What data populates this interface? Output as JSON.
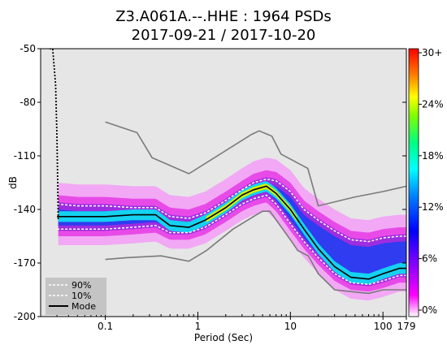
{
  "chart_data": {
    "type": "heatmap",
    "title_line1": "Z3.A061A.--.HHE : 1964 PSDs",
    "title_line2": "2017-09-21 / 2017-10-20",
    "xlabel": "Period (Sec)",
    "ylabel": "dB",
    "x_scale": "log",
    "xlim": [
      0.02,
      179
    ],
    "ylim": [
      -200,
      -50
    ],
    "x_ticks": [
      {
        "value": 0.1,
        "label": "0.1"
      },
      {
        "value": 1,
        "label": "1"
      },
      {
        "value": 10,
        "label": "10"
      },
      {
        "value": 100,
        "label": "100"
      },
      {
        "value": 179,
        "label": "179"
      }
    ],
    "y_ticks": [
      {
        "value": -50,
        "label": "-50"
      },
      {
        "value": -80,
        "label": "-80"
      },
      {
        "value": -110,
        "label": "-110"
      },
      {
        "value": -140,
        "label": "-140"
      },
      {
        "value": -170,
        "label": "-170"
      },
      {
        "value": -200,
        "label": "-200"
      }
    ],
    "colorbar": {
      "labels": [
        "30+",
        "24%",
        "18%",
        "12%",
        "6%",
        "0%"
      ],
      "range": [
        0,
        30
      ],
      "colormap": [
        "#ffffff",
        "#ff00ff",
        "#8000ff",
        "#0000ff",
        "#0080ff",
        "#00ffff",
        "#00ff80",
        "#80ff00",
        "#ffff00",
        "#ff8000",
        "#ff0000"
      ]
    },
    "legend": {
      "placement": "bottom-left",
      "entries": [
        {
          "label": "90%",
          "style": "dashed",
          "color": "#ffffff"
        },
        {
          "label": "10%",
          "style": "dashed",
          "color": "#ffffff"
        },
        {
          "label": "Mode",
          "style": "solid",
          "color": "#000000"
        }
      ]
    },
    "series": [
      {
        "name": "Mode",
        "points": [
          [
            0.03,
            -144
          ],
          [
            0.05,
            -144
          ],
          [
            0.1,
            -144
          ],
          [
            0.2,
            -143
          ],
          [
            0.35,
            -143
          ],
          [
            0.5,
            -149
          ],
          [
            0.8,
            -150
          ],
          [
            1.2,
            -146
          ],
          [
            2,
            -139
          ],
          [
            3,
            -132
          ],
          [
            4,
            -129
          ],
          [
            5.5,
            -127
          ],
          [
            7,
            -131
          ],
          [
            10,
            -140
          ],
          [
            14,
            -151
          ],
          [
            20,
            -162
          ],
          [
            30,
            -172
          ],
          [
            45,
            -178
          ],
          [
            70,
            -179
          ],
          [
            100,
            -176
          ],
          [
            150,
            -173
          ],
          [
            179,
            -173
          ]
        ]
      },
      {
        "name": "90%",
        "points": [
          [
            0.03,
            -137
          ],
          [
            0.05,
            -138
          ],
          [
            0.1,
            -138
          ],
          [
            0.2,
            -139
          ],
          [
            0.35,
            -139
          ],
          [
            0.5,
            -144
          ],
          [
            0.8,
            -145
          ],
          [
            1.2,
            -142
          ],
          [
            2,
            -135
          ],
          [
            3,
            -129
          ],
          [
            4,
            -125
          ],
          [
            5.5,
            -123
          ],
          [
            7,
            -124
          ],
          [
            10,
            -130
          ],
          [
            14,
            -140
          ],
          [
            20,
            -146
          ],
          [
            30,
            -152
          ],
          [
            45,
            -157
          ],
          [
            70,
            -158
          ],
          [
            100,
            -156
          ],
          [
            150,
            -155
          ],
          [
            179,
            -155
          ]
        ]
      },
      {
        "name": "10%",
        "points": [
          [
            0.03,
            -151
          ],
          [
            0.05,
            -151
          ],
          [
            0.1,
            -151
          ],
          [
            0.2,
            -150
          ],
          [
            0.35,
            -149
          ],
          [
            0.5,
            -153
          ],
          [
            0.8,
            -153
          ],
          [
            1.2,
            -150
          ],
          [
            2,
            -143
          ],
          [
            3,
            -137
          ],
          [
            4,
            -134
          ],
          [
            5.5,
            -132
          ],
          [
            7,
            -137
          ],
          [
            10,
            -148
          ],
          [
            14,
            -158
          ],
          [
            20,
            -167
          ],
          [
            30,
            -176
          ],
          [
            45,
            -181
          ],
          [
            70,
            -182
          ],
          [
            100,
            -180
          ],
          [
            150,
            -177
          ],
          [
            179,
            -177
          ]
        ]
      },
      {
        "name": "NLNM",
        "points": [
          [
            0.1,
            -168
          ],
          [
            0.17,
            -167
          ],
          [
            0.4,
            -166
          ],
          [
            0.8,
            -169
          ],
          [
            1.24,
            -163
          ],
          [
            2.4,
            -151
          ],
          [
            4.3,
            -143
          ],
          [
            5,
            -141
          ],
          [
            6,
            -141
          ],
          [
            10,
            -157
          ],
          [
            12,
            -163
          ],
          [
            15.6,
            -166
          ],
          [
            20,
            -176
          ],
          [
            30,
            -185
          ],
          [
            45,
            -186
          ],
          [
            70,
            -187
          ],
          [
            100,
            -185
          ],
          [
            179,
            -185
          ]
        ]
      },
      {
        "name": "NHNM",
        "points": [
          [
            0.1,
            -91
          ],
          [
            0.22,
            -97
          ],
          [
            0.32,
            -111
          ],
          [
            0.8,
            -120
          ],
          [
            3.8,
            -98
          ],
          [
            4.6,
            -96
          ],
          [
            6.3,
            -99
          ],
          [
            7.9,
            -109
          ],
          [
            15.4,
            -117
          ],
          [
            20,
            -138
          ],
          [
            50,
            -133
          ],
          [
            100,
            -130
          ],
          [
            179,
            -127
          ]
        ]
      },
      {
        "name": "Low-frequency rise",
        "points": [
          [
            0.025,
            -50
          ],
          [
            0.027,
            -50
          ],
          [
            0.029,
            -70
          ],
          [
            0.03,
            -100
          ],
          [
            0.031,
            -146
          ]
        ]
      }
    ]
  }
}
